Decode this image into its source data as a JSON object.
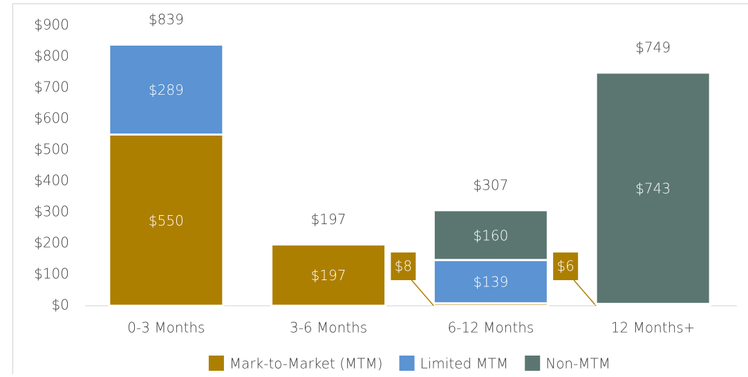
{
  "chart_data": {
    "type": "stacked_bar",
    "categories": [
      "0-3 Months",
      "3-6 Months",
      "6-12 Months",
      "12 Months+"
    ],
    "series": [
      {
        "name": "Mark-to-Market (MTM)",
        "color": "#ad7f00",
        "values": [
          550,
          197,
          8,
          6
        ],
        "value_labels": [
          "$550",
          "$197",
          "$8",
          "$6"
        ]
      },
      {
        "name": "Limited MTM",
        "color": "#5b93d3",
        "values": [
          289,
          null,
          139,
          null
        ],
        "value_labels": [
          "$289",
          null,
          "$139",
          null
        ]
      },
      {
        "name": "Non-MTM",
        "color": "#5b7670",
        "values": [
          null,
          null,
          160,
          743
        ],
        "value_labels": [
          null,
          null,
          "$160",
          "$743"
        ]
      }
    ],
    "totals": [
      839,
      197,
      307,
      749
    ],
    "total_labels": [
      "$839",
      "$197",
      "$307",
      "$749"
    ],
    "ylim": [
      0,
      900
    ],
    "yticks": [
      {
        "value": 0,
        "label": "$0"
      },
      {
        "value": 100,
        "label": "$100"
      },
      {
        "value": 200,
        "label": "$200"
      },
      {
        "value": 300,
        "label": "$300"
      },
      {
        "value": 400,
        "label": "$400"
      },
      {
        "value": 500,
        "label": "$500"
      },
      {
        "value": 600,
        "label": "$600"
      },
      {
        "value": 700,
        "label": "$700"
      },
      {
        "value": 800,
        "label": "$800"
      },
      {
        "value": 900,
        "label": "$900"
      }
    ],
    "legend": "bottom"
  }
}
